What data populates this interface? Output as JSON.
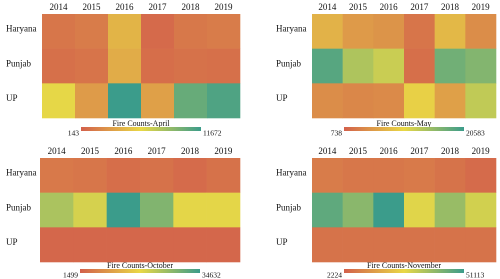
{
  "chart_data": [
    {
      "type": "heatmap",
      "title": "Fire Counts-April",
      "categories": [
        "2014",
        "2015",
        "2016",
        "2017",
        "2018",
        "2019"
      ],
      "rows": [
        "Haryana",
        "Punjab",
        "UP"
      ],
      "values": [
        [
          1200,
          1500,
          4200,
          600,
          1300,
          1500
        ],
        [
          900,
          1100,
          3800,
          800,
          1000,
          900
        ],
        [
          6000,
          3000,
          11672,
          3200,
          10200,
          11000
        ]
      ],
      "zlim": [
        143,
        11672
      ],
      "colormap": [
        "#d3604b",
        "#e9d846",
        "#3b9c8b"
      ]
    },
    {
      "type": "heatmap",
      "title": "Fire Counts-May",
      "categories": [
        "2014",
        "2015",
        "2016",
        "2017",
        "2018",
        "2019"
      ],
      "rows": [
        "Haryana",
        "Punjab",
        "UP"
      ],
      "values": [
        [
          7500,
          5500,
          5000,
          2500,
          8000,
          4500
        ],
        [
          19000,
          14000,
          12500,
          2000,
          17500,
          16500
        ],
        [
          4500,
          4000,
          4200,
          10000,
          6000,
          13000
        ]
      ],
      "zlim": [
        738,
        20583
      ],
      "colormap": [
        "#d3604b",
        "#e9d846",
        "#3b9c8b"
      ]
    },
    {
      "type": "heatmap",
      "title": "Fire Counts-October",
      "categories": [
        "2014",
        "2015",
        "2016",
        "2017",
        "2018",
        "2019"
      ],
      "rows": [
        "Haryana",
        "Punjab",
        "UP"
      ],
      "values": [
        [
          5000,
          4500,
          3500,
          4000,
          3000,
          4000
        ],
        [
          24000,
          20000,
          34632,
          28000,
          18500,
          18500
        ],
        [
          2500,
          2500,
          2500,
          2500,
          2500,
          2500
        ]
      ],
      "zlim": [
        1499,
        34632
      ],
      "colormap": [
        "#d3604b",
        "#e9d846",
        "#3b9c8b"
      ]
    },
    {
      "type": "heatmap",
      "title": "Fire Counts-November",
      "categories": [
        "2014",
        "2015",
        "2016",
        "2017",
        "2018",
        "2019"
      ],
      "rows": [
        "Haryana",
        "Punjab",
        "UP"
      ],
      "values": [
        [
          8000,
          7000,
          7000,
          7500,
          6000,
          4500
        ],
        [
          46000,
          40000,
          51113,
          28000,
          38000,
          30000
        ],
        [
          6000,
          6000,
          6000,
          6000,
          6000,
          6000
        ]
      ],
      "zlim": [
        2224,
        51113
      ],
      "colormap": [
        "#d3604b",
        "#e9d846",
        "#3b9c8b"
      ]
    }
  ]
}
